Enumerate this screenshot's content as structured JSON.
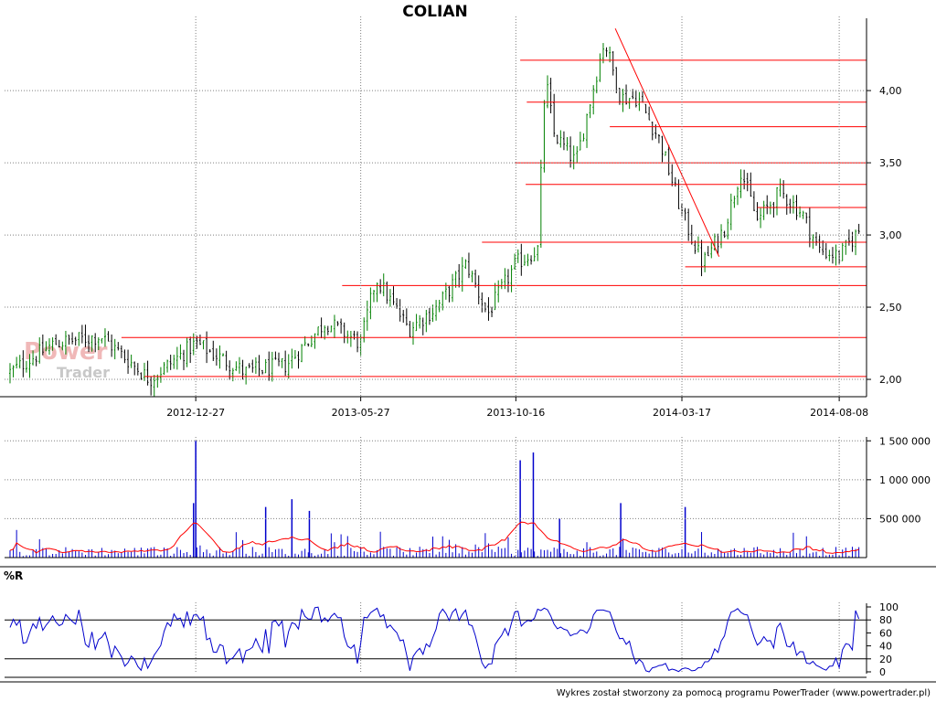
{
  "chart_data": {
    "type": "line",
    "title": "COLIAN",
    "price": {
      "x": [
        "2012-07-10",
        "2012-08-20",
        "2012-10-01",
        "2012-11-15",
        "2012-12-27",
        "2013-02-10",
        "2013-03-20",
        "2013-04-25",
        "2013-05-27",
        "2013-06-10",
        "2013-07-10",
        "2013-08-05",
        "2013-09-01",
        "2013-09-20",
        "2013-10-16",
        "2013-11-05",
        "2013-11-12",
        "2013-11-20",
        "2013-12-10",
        "2014-01-05",
        "2014-01-20",
        "2014-02-05",
        "2014-02-25",
        "2014-03-17",
        "2014-04-05",
        "2014-04-25",
        "2014-05-10",
        "2014-05-25",
        "2014-06-15",
        "2014-07-05",
        "2014-07-20",
        "2014-08-08",
        "2014-08-28"
      ],
      "close": [
        2.05,
        2.25,
        2.3,
        2.0,
        2.25,
        2.05,
        2.1,
        2.4,
        2.25,
        2.7,
        2.35,
        2.5,
        2.8,
        2.45,
        2.8,
        2.9,
        4.1,
        3.7,
        3.5,
        4.35,
        3.95,
        3.95,
        3.65,
        3.15,
        2.8,
        3.05,
        3.45,
        3.1,
        3.3,
        3.15,
        2.9,
        2.85,
        3.05
      ],
      "ylim": [
        1.88,
        4.45
      ],
      "yticks": [
        "2,00",
        "2,50",
        "3,00",
        "3,50",
        "4,00"
      ],
      "xticks": [
        "2012-12-27",
        "2013-05-27",
        "2013-10-16",
        "2014-03-17",
        "2014-08-08"
      ],
      "support_resistance": [
        2.02,
        2.29,
        2.65,
        2.95,
        3.35,
        3.5,
        3.75,
        3.92,
        4.21,
        2.78,
        3.19
      ],
      "trendline": {
        "from": [
          "2014-01-15",
          4.43
        ],
        "to": [
          "2014-04-20",
          2.85
        ]
      }
    },
    "volume": {
      "yticks": [
        "500 000",
        "1 000 000",
        "1 500 000"
      ],
      "ylim": [
        0,
        1550000
      ],
      "spikes": [
        {
          "x": "2012-12-27",
          "v": 1500000
        },
        {
          "x": "2013-10-20",
          "v": 1250000
        },
        {
          "x": "2013-11-01",
          "v": 1350000
        },
        {
          "x": "2012-12-25",
          "v": 700000
        },
        {
          "x": "2013-03-01",
          "v": 650000
        },
        {
          "x": "2013-03-25",
          "v": 750000
        },
        {
          "x": "2013-04-10",
          "v": 600000
        },
        {
          "x": "2014-01-20",
          "v": 700000
        },
        {
          "x": "2014-03-20",
          "v": 650000
        },
        {
          "x": "2013-11-25",
          "v": 500000
        }
      ]
    },
    "williams_r": {
      "label": "%R",
      "ylim": [
        0,
        100
      ],
      "yticks": [
        "0",
        "20",
        "40",
        "60",
        "80",
        "100"
      ],
      "levels": [
        20,
        80
      ]
    },
    "colors": {
      "candle_up": "#008000",
      "candle_down": "#000000",
      "sr_line": "#ff0000",
      "volume_bar": "#0000cc",
      "volume_ma": "#ff0000",
      "wr_line": "#0000cc",
      "grid": "#808080"
    }
  },
  "footer": "Wykres został stworzony za pomocą programu PowerTrader (www.powertrader.pl)",
  "watermark": {
    "line1": "Power",
    "line2": "Trader"
  }
}
